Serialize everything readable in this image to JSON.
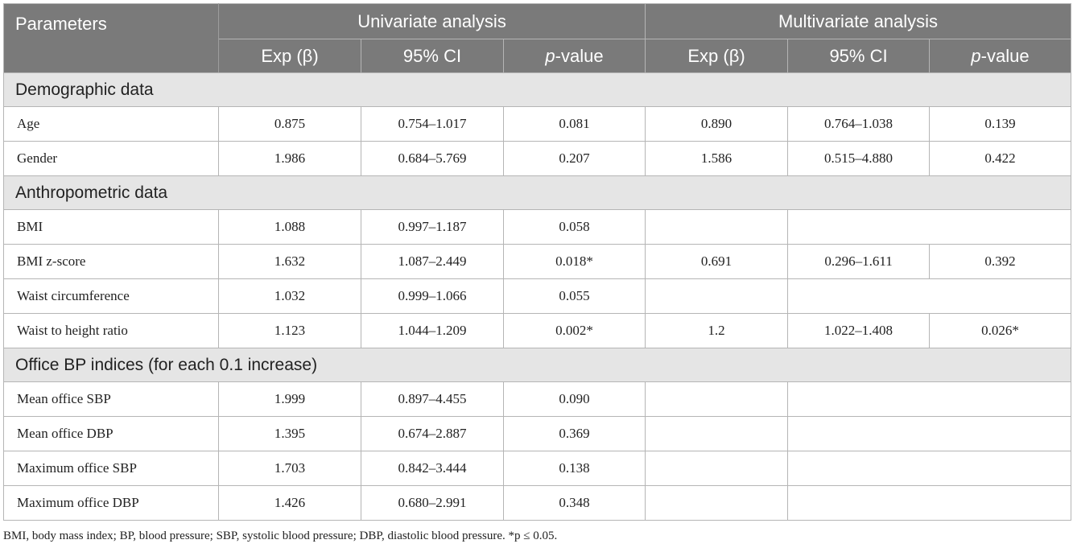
{
  "header": {
    "parameters": "Parameters",
    "univariate": "Univariate analysis",
    "multivariate": "Multivariate analysis",
    "exp_beta": "Exp (β)",
    "ci": "95% CI",
    "p_italic": "p",
    "p_rest": "-value"
  },
  "sections": [
    {
      "title": "Demographic data",
      "rows": [
        {
          "label": "Age",
          "u_exp": "0.875",
          "u_ci": "0.754–1.017",
          "u_p": "0.081",
          "m_exp": "0.890",
          "m_ci": "0.764–1.038",
          "m_p": "0.139"
        },
        {
          "label": "Gender",
          "u_exp": "1.986",
          "u_ci": "0.684–5.769",
          "u_p": "0.207",
          "m_exp": "1.586",
          "m_ci": "0.515–4.880",
          "m_p": "0.422"
        }
      ]
    },
    {
      "title": "Anthropometric data",
      "rows": [
        {
          "label": "BMI",
          "u_exp": "1.088",
          "u_ci": "0.997–1.187",
          "u_p": "0.058",
          "m_exp": "",
          "m_ci": "",
          "m_p": ""
        },
        {
          "label": "BMI z-score",
          "u_exp": "1.632",
          "u_ci": "1.087–2.449",
          "u_p": "0.018*",
          "m_exp": "0.691",
          "m_ci": "0.296–1.611",
          "m_p": "0.392"
        },
        {
          "label": "Waist circumference",
          "u_exp": "1.032",
          "u_ci": "0.999–1.066",
          "u_p": "0.055",
          "m_exp": "",
          "m_ci": "",
          "m_p": ""
        },
        {
          "label": "Waist to height ratio",
          "u_exp": "1.123",
          "u_ci": "1.044–1.209",
          "u_p": "0.002*",
          "m_exp": "1.2",
          "m_ci": "1.022–1.408",
          "m_p": "0.026*"
        }
      ]
    },
    {
      "title": "Office BP indices (for each 0.1 increase)",
      "rows": [
        {
          "label": "Mean office SBP",
          "u_exp": "1.999",
          "u_ci": "0.897–4.455",
          "u_p": "0.090",
          "m_exp": "",
          "m_ci": "",
          "m_p": ""
        },
        {
          "label": "Mean office DBP",
          "u_exp": "1.395",
          "u_ci": "0.674–2.887",
          "u_p": "0.369",
          "m_exp": "",
          "m_ci": "",
          "m_p": ""
        },
        {
          "label": "Maximum office SBP",
          "u_exp": "1.703",
          "u_ci": "0.842–3.444",
          "u_p": "0.138",
          "m_exp": "",
          "m_ci": "",
          "m_p": ""
        },
        {
          "label": "Maximum office DBP",
          "u_exp": "1.426",
          "u_ci": "0.680–2.991",
          "u_p": "0.348",
          "m_exp": "",
          "m_ci": "",
          "m_p": ""
        }
      ]
    }
  ],
  "footnote": "BMI, body mass index; BP, blood pressure; SBP, systolic blood pressure; DBP, diastolic blood pressure. *p ≤ 0.05."
}
